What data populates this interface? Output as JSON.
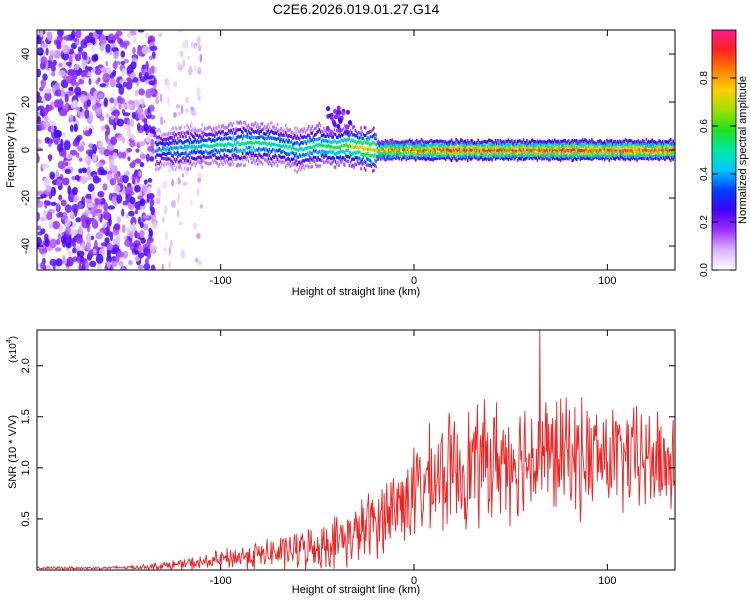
{
  "figure": {
    "title": "C2E6.2026.019.01.27.G14"
  },
  "chart_data": [
    {
      "type": "heatmap",
      "title": "C2E6.2026.019.01.27.G14",
      "xlabel": "Height of straight line (km)",
      "ylabel": "Frequency (Hz)",
      "xlim": [
        -195,
        135
      ],
      "ylim": [
        -50,
        50
      ],
      "xticks": [
        -100,
        0,
        100
      ],
      "yticks": [
        -40,
        -20,
        0,
        20,
        40
      ],
      "colorbar": {
        "label": "Normalized spectral amplitude",
        "range": [
          0,
          1
        ],
        "ticks": [
          0.0,
          0.2,
          0.4,
          0.6,
          0.8
        ],
        "colors": [
          "#ffffff",
          "#d8b4ff",
          "#9b30ff",
          "#4000ff",
          "#0040ff",
          "#00c8ff",
          "#00e8a0",
          "#20e020",
          "#a0e000",
          "#ffd000",
          "#ff8000",
          "#ff2020",
          "#ff1a90"
        ]
      },
      "regions": [
        {
          "name": "noise",
          "x_range": [
            -195,
            -134
          ],
          "freq_range": [
            -50,
            50
          ],
          "amplitude": "0.05-0.25"
        },
        {
          "name": "sparse noise",
          "x_range": [
            -134,
            -112
          ],
          "freq_range": [
            -50,
            50
          ],
          "amplitude": "0.0-0.1"
        },
        {
          "name": "signal band",
          "x_range": [
            -134,
            135
          ],
          "center_freq": 0,
          "amplitude": "0.3-0.95"
        }
      ],
      "signal_ridge": {
        "x": [
          -134,
          -120,
          -100,
          -85,
          -70,
          -60,
          -50,
          -40,
          -35,
          -30,
          -20,
          -10,
          0,
          20,
          50,
          100,
          135
        ],
        "freq": [
          0,
          1,
          2,
          3,
          2,
          0,
          2,
          1,
          2,
          1,
          0,
          0,
          0,
          0,
          0,
          0,
          0
        ],
        "amplitude": [
          0.4,
          0.45,
          0.5,
          0.55,
          0.5,
          0.5,
          0.55,
          0.6,
          0.65,
          0.7,
          0.75,
          0.85,
          0.9,
          0.95,
          0.95,
          0.95,
          0.95
        ]
      }
    },
    {
      "type": "line",
      "xlabel": "Height of straight line (km)",
      "ylabel": "SNR (10 * V/V)",
      "y_multiplier": "(x10",
      "y_multiplier_exp": "4",
      "y_multiplier_close": ")",
      "xlim": [
        -195,
        135
      ],
      "ylim": [
        0,
        2.35
      ],
      "xticks": [
        -100,
        0,
        100
      ],
      "yticks": [
        0.5,
        1.0,
        1.5,
        2.0
      ],
      "ytick_labels": [
        "0.5",
        "1.0",
        "1.5",
        "2.0"
      ],
      "series": [
        {
          "name": "SNR",
          "color": "#ee2222",
          "envelope": {
            "x": [
              -195,
              -160,
              -140,
              -125,
              -110,
              -100,
              -90,
              -80,
              -70,
              -60,
              -50,
              -40,
              -30,
              -20,
              -10,
              0,
              10,
              20,
              30,
              40,
              50,
              60,
              70,
              80,
              90,
              100,
              110,
              120,
              135
            ],
            "mean": [
              0.02,
              0.02,
              0.03,
              0.05,
              0.07,
              0.1,
              0.13,
              0.15,
              0.17,
              0.2,
              0.23,
              0.28,
              0.35,
              0.48,
              0.62,
              0.75,
              0.88,
              0.97,
              1.03,
              1.07,
              1.1,
              1.12,
              1.12,
              1.12,
              1.1,
              1.1,
              1.08,
              1.08,
              1.05
            ],
            "spread": [
              0.01,
              0.01,
              0.02,
              0.04,
              0.06,
              0.08,
              0.1,
              0.12,
              0.14,
              0.16,
              0.18,
              0.22,
              0.25,
              0.3,
              0.35,
              0.4,
              0.45,
              0.48,
              0.5,
              0.5,
              0.5,
              0.5,
              0.5,
              0.48,
              0.48,
              0.45,
              0.45,
              0.45,
              0.45
            ],
            "peak": {
              "x": 65,
              "y": 2.35
            }
          }
        }
      ]
    }
  ]
}
